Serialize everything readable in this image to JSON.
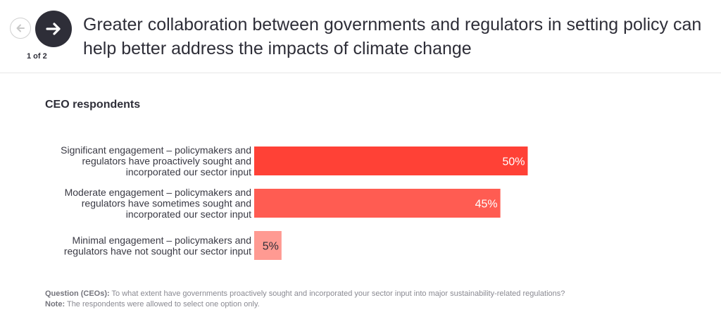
{
  "header": {
    "title": "Greater collaboration between governments and regulators in setting policy can help better address the impacts of climate change",
    "pager": "1 of 2"
  },
  "chart_data": {
    "type": "bar",
    "orientation": "horizontal",
    "title": "CEO respondents",
    "categories": [
      [
        "Significant engagement – policymakers and",
        "regulators have proactively sought and",
        "incorporated our sector input"
      ],
      [
        "Moderate engagement – policymakers and",
        "regulators have sometimes sought and",
        "incorporated our sector input"
      ],
      [
        "Minimal engagement – policymakers and",
        "regulators have not sought our sector input"
      ]
    ],
    "values": [
      50,
      45,
      5
    ],
    "value_labels": [
      "50%",
      "45%",
      "5%"
    ],
    "colors": [
      "#ff4136",
      "#ff5c52",
      "#ff9a92"
    ],
    "value_label_colors": [
      "#ffffff",
      "#ffffff",
      "#2e2e38"
    ],
    "xlim": [
      0,
      100
    ],
    "xlabel": "",
    "ylabel": ""
  },
  "footnote": {
    "question_label": "Question (CEOs):",
    "question_text": "To what extent have governments proactively sought and incorporated your sector input into major sustainability-related regulations?",
    "note_label": "Note:",
    "note_text": "The respondents were allowed to select one option only."
  }
}
